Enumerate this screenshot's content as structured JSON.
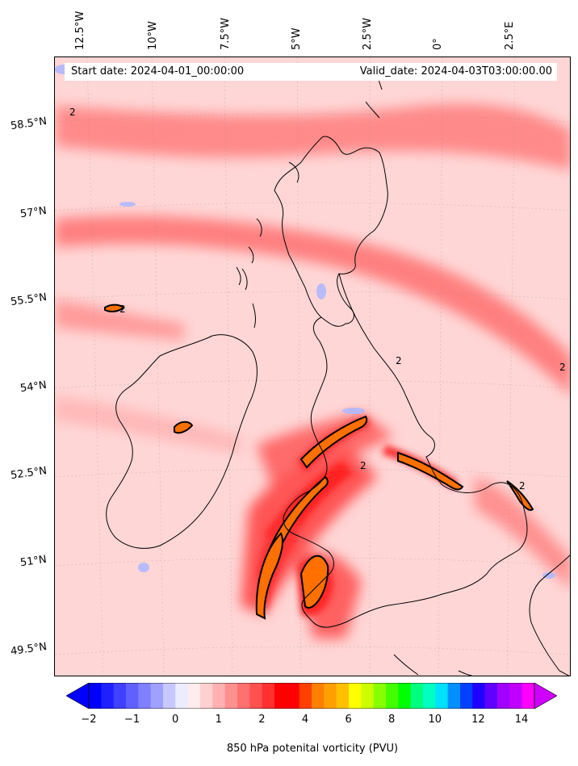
{
  "header": {
    "start_date": "Start date: 2024-04-01_00:00:00",
    "valid_date": "Valid_date: 2024-04-03T03:00:00.00"
  },
  "map": {
    "lon_labels": [
      "12.5°W",
      "10°W",
      "7.5°W",
      "5°W",
      "2.5°W",
      "0°",
      "2.5°E"
    ],
    "lat_labels": [
      "58.5°N",
      "57°N",
      "55.5°N",
      "54°N",
      "52.5°N",
      "51°N",
      "49.5°N"
    ],
    "contour_label": "2",
    "colors": {
      "background_pv": "#ffd6d6",
      "band_pv": "#ff7777",
      "strong_pv": "#ff2020",
      "peak_pv": "#ff7000",
      "negative_pv": "#b0b8ff",
      "coastline": "#000000"
    }
  },
  "colorbar": {
    "label": "850 hPa potenital vorticity (PVU)",
    "ticks": [
      "−2",
      "−1",
      "0",
      "1",
      "2",
      "4",
      "6",
      "8",
      "10",
      "12",
      "14"
    ],
    "colors": [
      "#0000ff",
      "#2020ff",
      "#4040ff",
      "#6060ff",
      "#8080ff",
      "#a0a0ff",
      "#c8c8ff",
      "#ececff",
      "#ffecec",
      "#ffd0d0",
      "#ffb0b0",
      "#ff9090",
      "#ff7070",
      "#ff5050",
      "#ff3030",
      "#ff0000",
      "#ff0000",
      "#ff4000",
      "#ff8000",
      "#ffa000",
      "#ffc000",
      "#ffff00",
      "#ccff00",
      "#88ff00",
      "#44ff00",
      "#00ff00",
      "#00ff80",
      "#00ffc0",
      "#00e0ff",
      "#0090ff",
      "#0040ff",
      "#2000ff",
      "#6000ff",
      "#a000ff",
      "#c000ff",
      "#ff00ff"
    ],
    "under_color": "#0000ff",
    "over_color": "#d000ff"
  }
}
